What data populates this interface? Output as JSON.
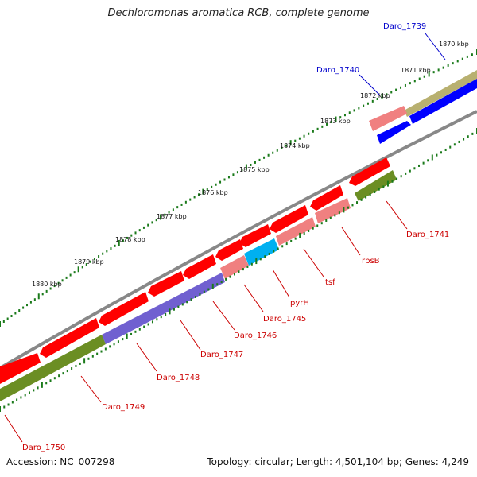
{
  "title": "Dechloromonas aromatica RCB, complete genome",
  "accession": "Accession: NC_007298",
  "stats": "Topology: circular; Length: 4,501,104 bp; Genes: 4,249",
  "ticks": [
    "1870 kbp",
    "1871 kbp",
    "1872 kbp",
    "1873 kbp",
    "1874 kbp",
    "1875 kbp",
    "1876 kbp",
    "1877 kbp",
    "1878 kbp",
    "1879 kbp",
    "1880 kbp"
  ],
  "colors": {
    "forward_cds": "#ff0000",
    "reverse_cds": "#ff0000",
    "forward_label": "#0000cc",
    "reverse_label": "#cc0000",
    "backbone": "#808080",
    "tick": "#1a7a1a"
  },
  "genes": [
    {
      "name": "Daro_1739",
      "strand": "forward",
      "color": "#0000ff"
    },
    {
      "name": "Daro_1740",
      "strand": "forward",
      "color": "#0000ff"
    },
    {
      "name": "Daro_1741",
      "strand": "reverse",
      "color": "#ff0000"
    },
    {
      "name": "rpsB",
      "strand": "reverse",
      "color": "#ff0000"
    },
    {
      "name": "tsf",
      "strand": "reverse",
      "color": "#ff0000"
    },
    {
      "name": "pyrH",
      "strand": "reverse",
      "color": "#ff0000"
    },
    {
      "name": "Daro_1745",
      "strand": "reverse",
      "color": "#ff0000"
    },
    {
      "name": "Daro_1746",
      "strand": "reverse",
      "color": "#ff0000"
    },
    {
      "name": "Daro_1747",
      "strand": "reverse",
      "color": "#ff0000"
    },
    {
      "name": "Daro_1748",
      "strand": "reverse",
      "color": "#ff0000"
    },
    {
      "name": "Daro_1749",
      "strand": "reverse",
      "color": "#ff0000"
    },
    {
      "name": "Daro_1750",
      "strand": "reverse",
      "color": "#ff0000"
    }
  ],
  "category_colors": {
    "forward_outer": "#b8b070",
    "forward_inner": "#f08080",
    "rev_khaki": "#6b8e23",
    "rev_purple": "#7060d0",
    "rev_pink": "#f08080",
    "rev_cyan": "#00b0f0"
  }
}
